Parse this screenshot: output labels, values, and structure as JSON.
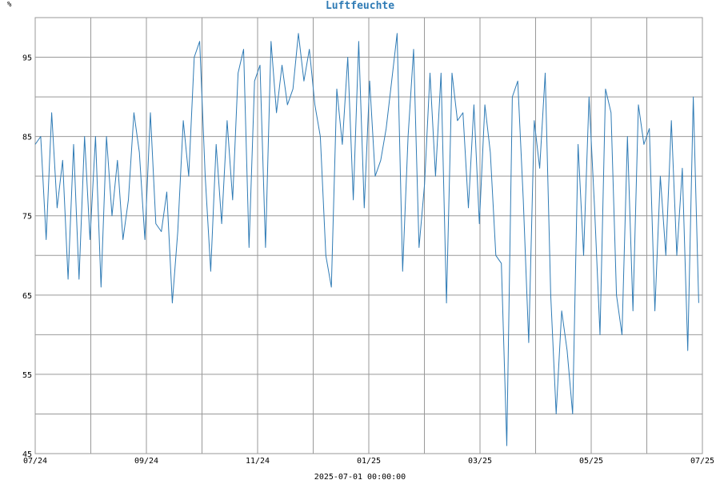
{
  "chart_data": {
    "type": "line",
    "title": "Luftfeuchte",
    "ylabel": "%",
    "footer": "2025-07-01 00:00:00",
    "ylim": [
      45,
      100
    ],
    "yticks": [
      45,
      55,
      65,
      75,
      85,
      95
    ],
    "x_ticks": [
      "07/24",
      "09/24",
      "11/24",
      "01/25",
      "03/25",
      "05/25",
      "07/25"
    ],
    "x_range": [
      "2024-07-01",
      "2025-07-01"
    ],
    "grid": true,
    "line_color": "#2f7bb5",
    "series": [
      {
        "x": [
          "2024-07-01",
          "2024-07-04",
          "2024-07-07",
          "2024-07-10",
          "2024-07-13",
          "2024-07-16",
          "2024-07-19",
          "2024-07-22",
          "2024-07-25",
          "2024-07-28",
          "2024-07-31",
          "2024-08-03",
          "2024-08-06",
          "2024-08-09",
          "2024-08-12",
          "2024-08-15",
          "2024-08-18",
          "2024-08-21",
          "2024-08-24",
          "2024-08-27",
          "2024-08-30",
          "2024-09-02",
          "2024-09-05",
          "2024-09-08",
          "2024-09-11",
          "2024-09-14",
          "2024-09-17",
          "2024-09-20",
          "2024-09-23",
          "2024-09-26",
          "2024-09-29",
          "2024-10-02",
          "2024-10-05",
          "2024-10-08",
          "2024-10-11",
          "2024-10-14",
          "2024-10-17",
          "2024-10-20",
          "2024-10-23",
          "2024-10-26",
          "2024-10-29",
          "2024-11-01",
          "2024-11-04",
          "2024-11-07",
          "2024-11-10",
          "2024-11-13",
          "2024-11-16",
          "2024-11-19",
          "2024-11-22",
          "2024-11-25",
          "2024-11-28",
          "2024-12-01",
          "2024-12-04",
          "2024-12-07",
          "2024-12-10",
          "2024-12-13",
          "2024-12-16",
          "2024-12-19",
          "2024-12-22",
          "2024-12-25",
          "2024-12-28",
          "2024-12-31",
          "2025-01-03",
          "2025-01-06",
          "2025-01-09",
          "2025-01-12",
          "2025-01-15",
          "2025-01-18",
          "2025-01-21",
          "2025-01-24",
          "2025-01-27",
          "2025-01-30",
          "2025-02-02",
          "2025-02-05",
          "2025-02-08",
          "2025-02-11",
          "2025-02-14",
          "2025-02-17",
          "2025-02-20",
          "2025-02-23",
          "2025-02-26",
          "2025-03-01",
          "2025-03-04",
          "2025-03-07",
          "2025-03-10",
          "2025-03-13",
          "2025-03-16",
          "2025-03-19",
          "2025-03-22",
          "2025-03-25",
          "2025-03-28",
          "2025-03-31",
          "2025-04-03",
          "2025-04-06",
          "2025-04-09",
          "2025-04-12",
          "2025-04-15",
          "2025-04-18",
          "2025-04-21",
          "2025-04-24",
          "2025-04-27",
          "2025-04-30",
          "2025-05-03",
          "2025-05-06",
          "2025-05-09",
          "2025-05-12",
          "2025-05-15",
          "2025-05-18",
          "2025-05-21",
          "2025-05-24",
          "2025-05-27",
          "2025-05-30",
          "2025-06-02",
          "2025-06-05",
          "2025-06-08",
          "2025-06-11",
          "2025-06-14",
          "2025-06-17",
          "2025-06-20",
          "2025-06-23",
          "2025-06-26",
          "2025-06-29"
        ],
        "values": [
          84,
          85,
          72,
          88,
          76,
          82,
          67,
          84,
          67,
          85,
          72,
          85,
          66,
          85,
          75,
          82,
          72,
          77,
          88,
          83,
          72,
          88,
          74,
          73,
          78,
          64,
          73,
          87,
          80,
          95,
          97,
          80,
          68,
          84,
          74,
          87,
          77,
          93,
          96,
          71,
          92,
          94,
          71,
          97,
          88,
          94,
          89,
          91,
          98,
          92,
          96,
          89,
          85,
          70,
          66,
          91,
          84,
          95,
          77,
          97,
          76,
          92,
          80,
          82,
          86,
          92,
          98,
          68,
          85,
          96,
          71,
          79,
          93,
          80,
          93,
          64,
          93,
          87,
          88,
          76,
          89,
          74,
          89,
          83,
          70,
          69,
          46,
          90,
          92,
          77,
          59,
          87,
          81,
          93,
          65,
          50,
          63,
          58,
          50,
          84,
          70,
          90,
          76,
          60,
          91,
          88,
          65,
          60,
          85,
          63,
          89,
          84,
          86,
          63,
          80,
          70,
          87,
          70,
          81,
          58,
          90,
          64
        ]
      }
    ]
  }
}
